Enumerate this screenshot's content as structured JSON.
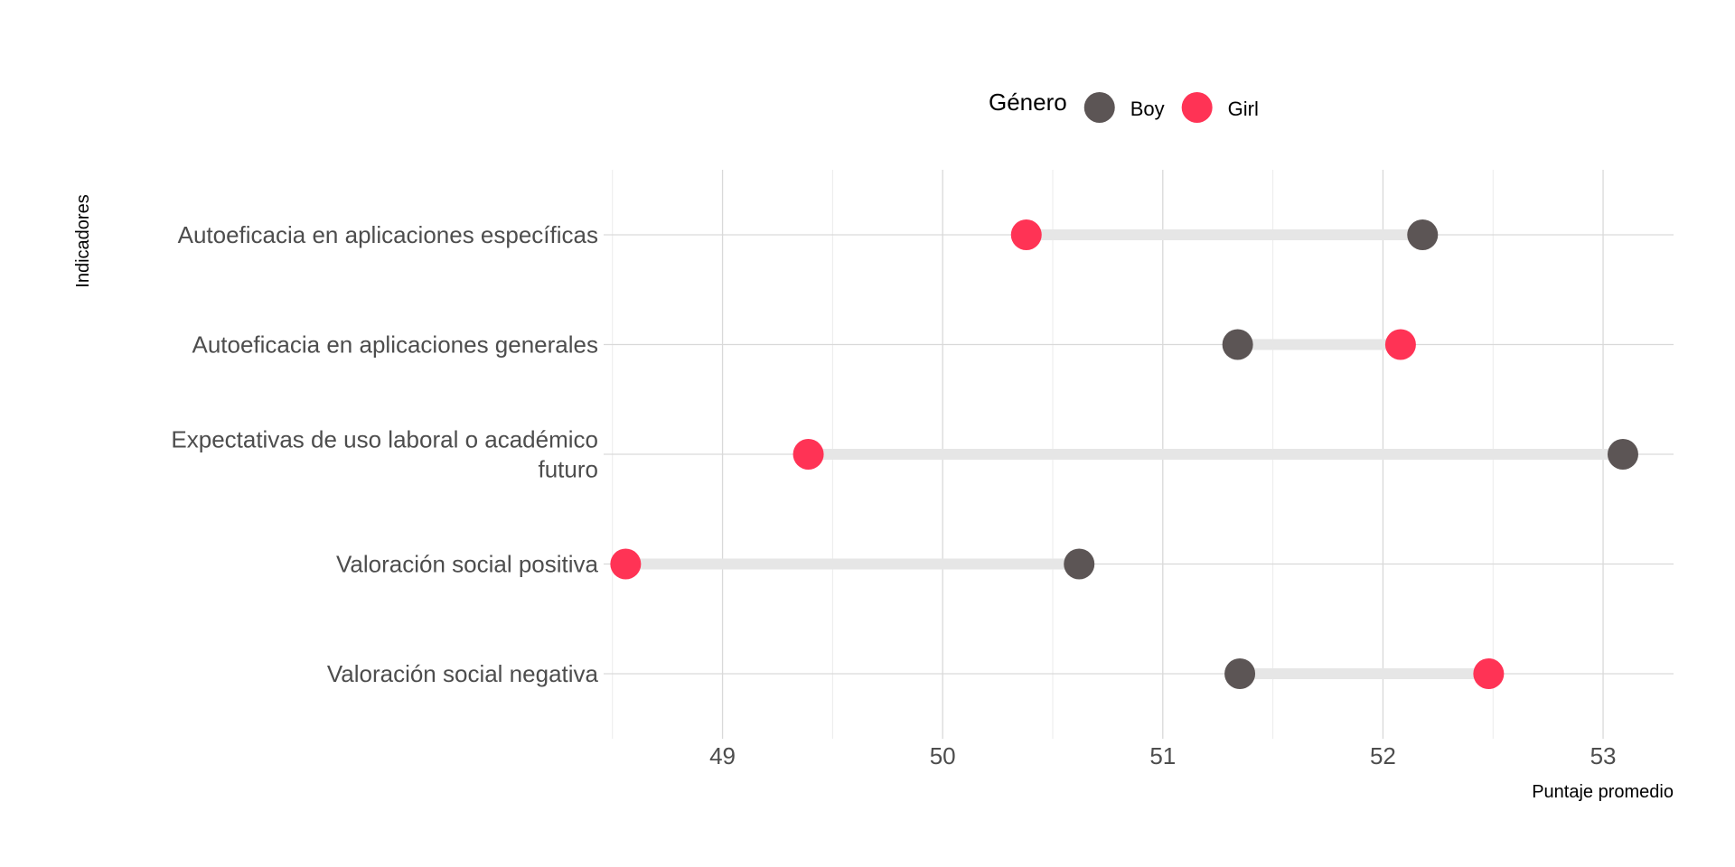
{
  "chart_data": {
    "type": "dumbbell",
    "xlabel": "Puntaje promedio",
    "ylabel": "Indicadores",
    "xlim": [
      48.46,
      53.32
    ],
    "xticks": [
      49,
      50,
      51,
      52,
      53
    ],
    "grid": true,
    "legend": {
      "title": "Género",
      "position": "top",
      "entries": [
        {
          "name": "Boy",
          "color": "#5c5555"
        },
        {
          "name": "Girl",
          "color": "#ff3355"
        }
      ]
    },
    "categories": [
      [
        "Autoeficacia en aplicaciones específicas"
      ],
      [
        "Autoeficacia en aplicaciones generales"
      ],
      [
        "Expectativas de uso laboral o académico",
        "futuro"
      ],
      [
        "Valoración social positiva"
      ],
      [
        "Valoración social negativa"
      ]
    ],
    "series": [
      {
        "name": "Boy",
        "color": "#5c5555",
        "values": [
          52.18,
          51.34,
          53.09,
          50.62,
          51.35
        ]
      },
      {
        "name": "Girl",
        "color": "#ff3355",
        "values": [
          50.38,
          52.08,
          49.39,
          48.56,
          52.48
        ]
      }
    ],
    "segment_color": "#e6e6e6"
  }
}
